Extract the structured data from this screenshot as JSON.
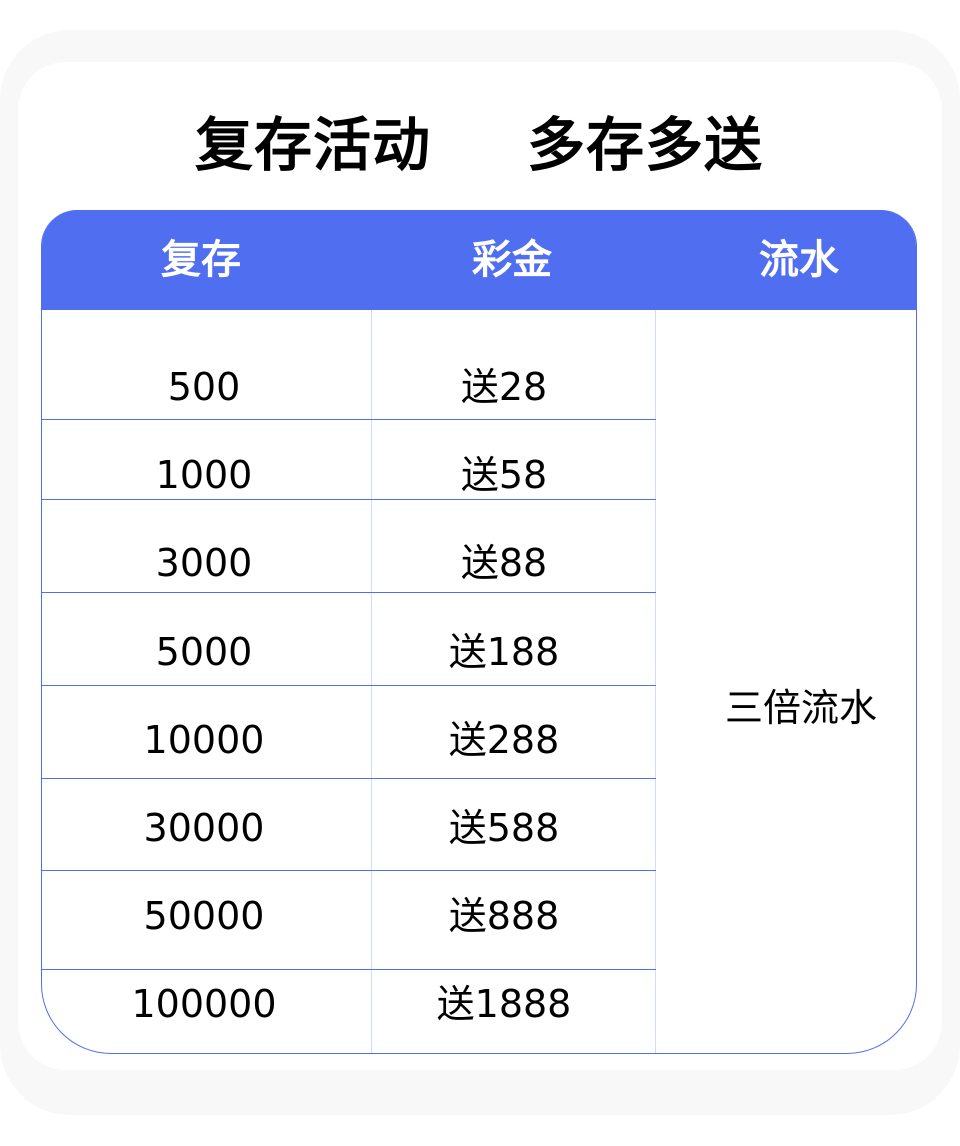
{
  "title": {
    "left": "复存活动",
    "right": "多存多送"
  },
  "table": {
    "headers": [
      "复存",
      "彩金",
      "流水"
    ],
    "rows": [
      {
        "deposit": "500",
        "bonus": "送28"
      },
      {
        "deposit": "1000",
        "bonus": "送58"
      },
      {
        "deposit": "3000",
        "bonus": "送88"
      },
      {
        "deposit": "5000",
        "bonus": "送188"
      },
      {
        "deposit": "10000",
        "bonus": "送288"
      },
      {
        "deposit": "30000",
        "bonus": "送588"
      },
      {
        "deposit": "50000",
        "bonus": "送888"
      },
      {
        "deposit": "100000",
        "bonus": "送1888"
      }
    ],
    "turnover": "三倍流水"
  },
  "colors": {
    "header": "#4f6ef0",
    "row_line": "#4f6ef0",
    "column_line": "#d3daff"
  }
}
